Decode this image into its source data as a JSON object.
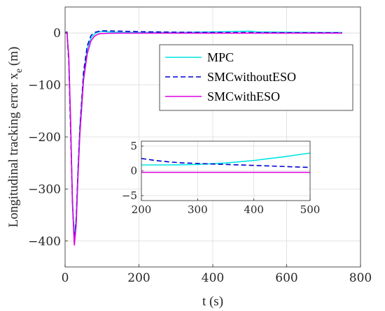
{
  "chart_data": {
    "type": "line",
    "xlabel": "t (s)",
    "ylabel": "Longitudinal tracking error x",
    "ylabel_sub": "e",
    "ylabel_unit": "(m)",
    "xlim": [
      0,
      800
    ],
    "ylim": [
      -450,
      50
    ],
    "xticks": [
      0,
      200,
      400,
      600,
      800
    ],
    "yticks": [
      0,
      -100,
      -200,
      -300,
      -400
    ],
    "xtick_labels": [
      "0",
      "200",
      "400",
      "600",
      "800"
    ],
    "ytick_labels": [
      "0",
      "−100",
      "−200",
      "−300",
      "−400"
    ],
    "grid": true,
    "legend_position": "top-right",
    "series": [
      {
        "name": "MPC",
        "color": "#00e5e5",
        "dash": "solid",
        "x": [
          0,
          5,
          10,
          15,
          20,
          25,
          30,
          35,
          40,
          50,
          60,
          70,
          80,
          90,
          100,
          120,
          150,
          200,
          250,
          300,
          350,
          400,
          450,
          500,
          520,
          600,
          700,
          750
        ],
        "y": [
          0,
          2,
          -50,
          -180,
          -320,
          -395,
          -355,
          -260,
          -180,
          -80,
          -30,
          -10,
          -2,
          2,
          3,
          2,
          1,
          1,
          1,
          1,
          1.5,
          2,
          2.8,
          3.5,
          2,
          1.5,
          1,
          1
        ]
      },
      {
        "name": "SMCwithoutESO",
        "color": "#0000d0",
        "dash": "dashed",
        "x": [
          0,
          5,
          10,
          15,
          20,
          25,
          30,
          35,
          40,
          50,
          60,
          70,
          80,
          90,
          100,
          120,
          150,
          200,
          250,
          300,
          350,
          400,
          450,
          500,
          600,
          700,
          750
        ],
        "y": [
          0,
          2,
          -55,
          -190,
          -330,
          -400,
          -360,
          -265,
          -185,
          -75,
          -25,
          -5,
          1,
          3,
          4,
          4,
          3.5,
          2.5,
          2,
          1.5,
          1.2,
          1,
          0.9,
          0.8,
          0.5,
          0.5,
          0.5
        ]
      },
      {
        "name": "SMCwithESO",
        "color": "#e000e0",
        "dash": "solid",
        "x": [
          0,
          5,
          10,
          15,
          20,
          25,
          30,
          35,
          40,
          50,
          60,
          70,
          80,
          90,
          100,
          120,
          150,
          200,
          300,
          400,
          500,
          600,
          700,
          750
        ],
        "y": [
          0,
          1,
          -45,
          -170,
          -330,
          -408,
          -370,
          -275,
          -195,
          -90,
          -40,
          -15,
          -6,
          -2,
          -1,
          -0.5,
          -0.3,
          -0.3,
          -0.3,
          -0.3,
          -0.3,
          -0.3,
          -0.3,
          -0.3
        ]
      }
    ],
    "inset": {
      "xlim": [
        200,
        500
      ],
      "ylim": [
        -6,
        6
      ],
      "xticks": [
        200,
        300,
        400,
        500
      ],
      "yticks": [
        5,
        0,
        -5
      ],
      "xtick_labels": [
        "200",
        "300",
        "400",
        "500"
      ],
      "ytick_labels": [
        "5",
        "0",
        "−5"
      ],
      "series": [
        {
          "name": "MPC",
          "x": [
            200,
            250,
            300,
            350,
            400,
            450,
            500
          ],
          "y": [
            1.2,
            1.2,
            1.3,
            1.6,
            2.1,
            2.8,
            3.6
          ]
        },
        {
          "name": "SMCwithoutESO",
          "x": [
            200,
            225,
            250,
            275,
            300,
            350,
            400,
            450,
            500
          ],
          "y": [
            2.5,
            2.1,
            1.8,
            1.6,
            1.5,
            1.3,
            1.1,
            0.9,
            0.7
          ]
        },
        {
          "name": "SMCwithESO",
          "x": [
            200,
            300,
            400,
            500
          ],
          "y": [
            -0.3,
            -0.3,
            -0.3,
            -0.3
          ]
        }
      ]
    }
  }
}
